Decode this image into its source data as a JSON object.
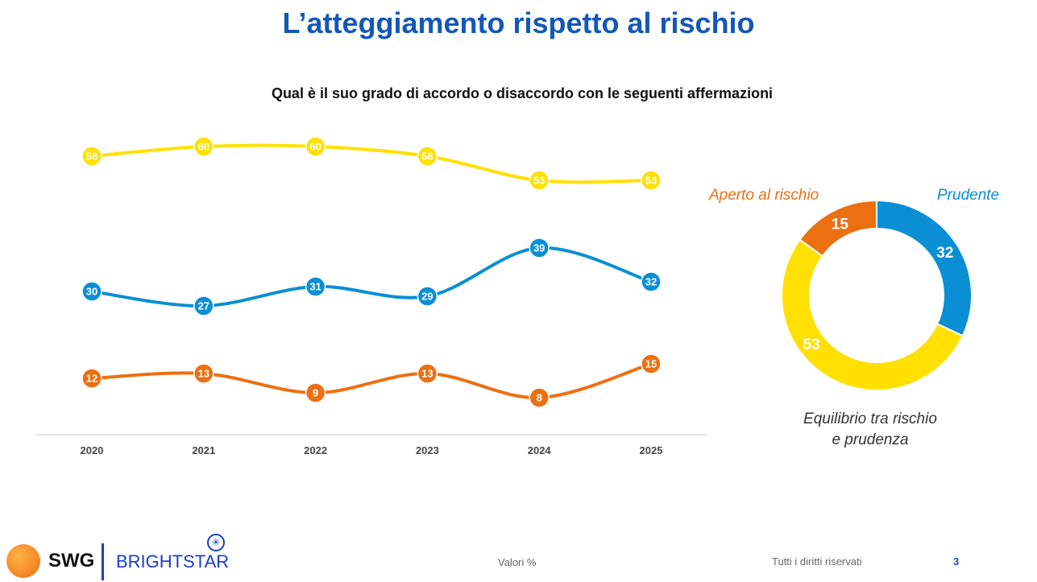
{
  "title": "L’atteggiamento rispetto al rischio",
  "subtitle": "Qual è il suo grado di accordo o disaccordo con le seguenti affermazioni",
  "chart_data": [
    {
      "type": "line",
      "categories": [
        "2020",
        "2021",
        "2022",
        "2023",
        "2024",
        "2025"
      ],
      "ylim": [
        0,
        65
      ],
      "grid": false,
      "series": [
        {
          "color": "#ffe000",
          "values": [
            58,
            60,
            60,
            58,
            53,
            53
          ]
        },
        {
          "color": "#0a8fd4",
          "values": [
            30,
            27,
            31,
            29,
            39,
            32
          ]
        },
        {
          "color": "#ec7012",
          "values": [
            12,
            13,
            9,
            13,
            8,
            15
          ]
        }
      ]
    },
    {
      "type": "pie",
      "donut": true,
      "slices": [
        {
          "label": "Prudente",
          "value": 32,
          "color": "#0a8fd4"
        },
        {
          "label": "Equilibrio tra rischio e prudenza",
          "value": 53,
          "color": "#ffe000"
        },
        {
          "label": "Aperto al rischio",
          "value": 15,
          "color": "#ec7012"
        }
      ]
    }
  ],
  "footer": {
    "logo_swg": "SWG",
    "logo_brightstar": "BRIGHTSTAR",
    "note": "Valori %",
    "rights": "Tutti i diritti riservati",
    "page": "3"
  }
}
